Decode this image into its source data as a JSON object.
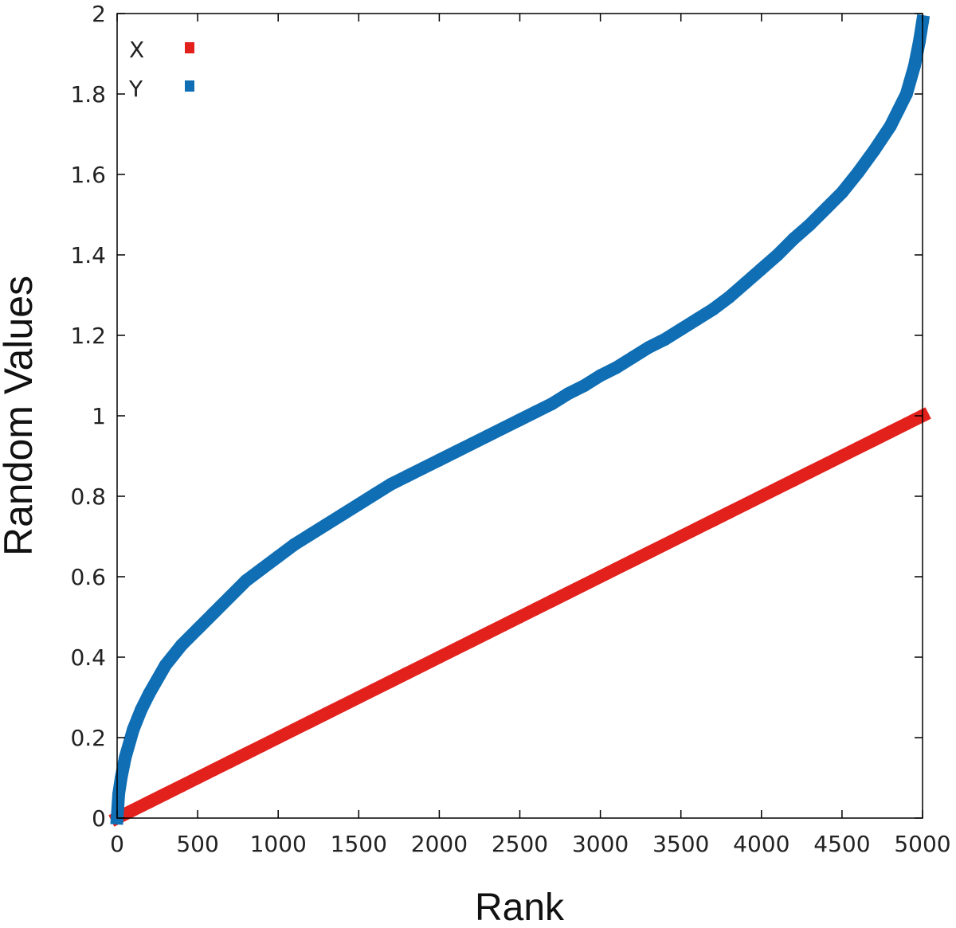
{
  "chart_data": {
    "type": "scatter",
    "title": "",
    "xlabel": "Rank",
    "ylabel": "Random Values",
    "xlim": [
      0,
      5000
    ],
    "ylim": [
      0,
      2
    ],
    "x_ticks": [
      0,
      500,
      1000,
      1500,
      2000,
      2500,
      3000,
      3500,
      4000,
      4500,
      5000
    ],
    "y_ticks": [
      0,
      0.2,
      0.4,
      0.6,
      0.8,
      1,
      1.2,
      1.4,
      1.6,
      1.8,
      2
    ],
    "x_tick_labels": [
      "0",
      "500",
      "1000",
      "1500",
      "2000",
      "2500",
      "3000",
      "3500",
      "4000",
      "4500",
      "5000"
    ],
    "y_tick_labels": [
      "0",
      "0.2",
      "0.4",
      "0.6",
      "0.8",
      "1",
      "1.2",
      "1.4",
      "1.6",
      "1.8",
      "2"
    ],
    "grid": false,
    "legend_position": "top-left",
    "series": [
      {
        "name": "X",
        "color": "#e3211c",
        "x": [
          0,
          50,
          100,
          200,
          300,
          400,
          500,
          600,
          700,
          800,
          900,
          1000,
          1100,
          1200,
          1300,
          1400,
          1500,
          1600,
          1700,
          1800,
          1900,
          2000,
          2100,
          2200,
          2300,
          2400,
          2500,
          2600,
          2700,
          2800,
          2900,
          3000,
          3100,
          3200,
          3300,
          3400,
          3500,
          3600,
          3700,
          3800,
          3900,
          4000,
          4100,
          4200,
          4300,
          4400,
          4500,
          4600,
          4700,
          4800,
          4900,
          5000
        ],
        "values": [
          0.0,
          0.01,
          0.02,
          0.04,
          0.06,
          0.08,
          0.1,
          0.12,
          0.14,
          0.16,
          0.18,
          0.2,
          0.22,
          0.24,
          0.26,
          0.28,
          0.3,
          0.32,
          0.34,
          0.36,
          0.38,
          0.4,
          0.42,
          0.44,
          0.46,
          0.48,
          0.5,
          0.52,
          0.54,
          0.56,
          0.58,
          0.6,
          0.62,
          0.64,
          0.66,
          0.68,
          0.7,
          0.72,
          0.74,
          0.76,
          0.78,
          0.8,
          0.82,
          0.84,
          0.86,
          0.88,
          0.9,
          0.92,
          0.94,
          0.96,
          0.98,
          1.0
        ]
      },
      {
        "name": "Y",
        "color": "#0f6eb4",
        "x": [
          0,
          10,
          25,
          50,
          100,
          150,
          200,
          300,
          400,
          500,
          600,
          700,
          800,
          900,
          1000,
          1100,
          1200,
          1300,
          1400,
          1500,
          1600,
          1700,
          1800,
          1900,
          2000,
          2100,
          2200,
          2300,
          2400,
          2500,
          2600,
          2700,
          2800,
          2900,
          3000,
          3100,
          3200,
          3300,
          3400,
          3500,
          3600,
          3700,
          3800,
          3900,
          4000,
          4100,
          4200,
          4300,
          4400,
          4500,
          4600,
          4700,
          4800,
          4850,
          4900,
          4950,
          4980,
          5000
        ],
        "values": [
          0.0,
          0.06,
          0.1,
          0.15,
          0.22,
          0.27,
          0.31,
          0.38,
          0.43,
          0.47,
          0.51,
          0.55,
          0.59,
          0.62,
          0.65,
          0.68,
          0.705,
          0.73,
          0.755,
          0.78,
          0.805,
          0.83,
          0.85,
          0.87,
          0.89,
          0.91,
          0.93,
          0.95,
          0.97,
          0.99,
          1.01,
          1.03,
          1.055,
          1.075,
          1.1,
          1.12,
          1.145,
          1.17,
          1.19,
          1.215,
          1.24,
          1.265,
          1.295,
          1.33,
          1.365,
          1.4,
          1.44,
          1.475,
          1.515,
          1.555,
          1.605,
          1.66,
          1.72,
          1.76,
          1.8,
          1.87,
          1.93,
          1.98
        ]
      }
    ]
  }
}
